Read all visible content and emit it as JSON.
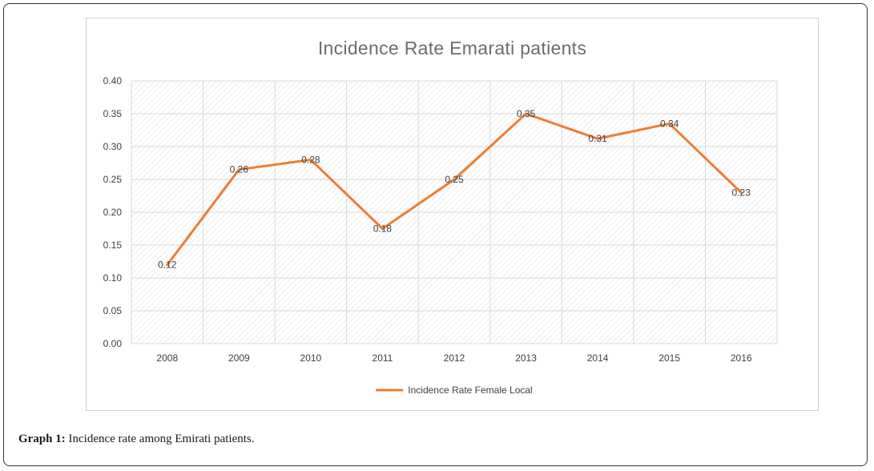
{
  "caption": {
    "label": "Graph 1:",
    "text": " Incidence rate among Emirati patients."
  },
  "chart_data": {
    "type": "line",
    "title": "Incidence Rate Emarati patients",
    "xlabel": "",
    "ylabel": "",
    "categories": [
      "2008",
      "2009",
      "2010",
      "2011",
      "2012",
      "2013",
      "2014",
      "2015",
      "2016"
    ],
    "series": [
      {
        "name": "Incidence Rate Female Local",
        "values": [
          0.12,
          0.265,
          0.28,
          0.175,
          0.25,
          0.35,
          0.312,
          0.335,
          0.23
        ],
        "labels": [
          "0.12",
          "0.26",
          "0.28",
          "0.18",
          "0.25",
          "0.35",
          "0.31",
          "0.34",
          "0.23"
        ],
        "color": "#ed7d31"
      }
    ],
    "ylim": [
      0,
      0.4
    ],
    "yticks": [
      "0.00",
      "0.05",
      "0.10",
      "0.15",
      "0.20",
      "0.25",
      "0.30",
      "0.35",
      "0.40"
    ],
    "grid": true,
    "legend": "bottom",
    "colors": {
      "title": "#6d6d6d",
      "gridline": "#d9d9d9",
      "hatch": "#e2e2e2",
      "tick_text": "#404040"
    }
  }
}
